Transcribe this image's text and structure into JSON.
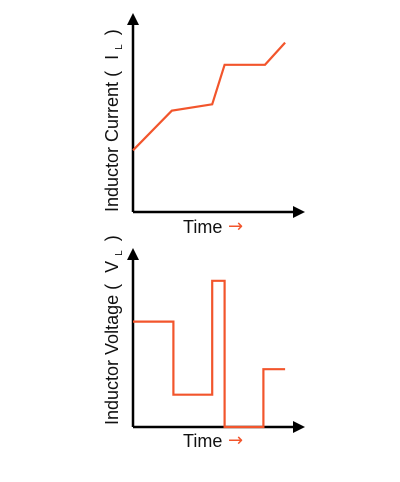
{
  "colors": {
    "axis": "#000000",
    "signal": "#f2552c",
    "text": "#111111"
  },
  "chart_data": [
    {
      "type": "line",
      "title": "",
      "ylabel": "Inductor Current",
      "ylabel_symbol": "I",
      "ylabel_subscript": "L",
      "xlabel": "Time",
      "xlabel_arrow": "→",
      "grid": false,
      "ticks": false,
      "x": [
        0,
        2.5,
        5.1,
        5.9,
        8.5,
        9.8
      ],
      "y": [
        3.9,
        6.4,
        6.8,
        9.3,
        9.3,
        10.7
      ],
      "xlim": [
        0,
        10.5
      ],
      "ylim": [
        0,
        12
      ]
    },
    {
      "type": "line",
      "title": "",
      "ylabel": "Inductor Voltage",
      "ylabel_symbol": "V",
      "ylabel_subscript": "L",
      "xlabel": "Time",
      "xlabel_arrow": "→",
      "grid": false,
      "ticks": false,
      "x": [
        0,
        2.6,
        2.6,
        5.1,
        5.1,
        5.9,
        5.9,
        8.4,
        8.4,
        9.8
      ],
      "y": [
        6.2,
        6.2,
        1.9,
        1.9,
        8.6,
        8.6,
        0,
        0,
        3.4,
        3.4
      ],
      "xlim": [
        0,
        10.5
      ],
      "ylim": [
        0,
        10
      ]
    }
  ]
}
